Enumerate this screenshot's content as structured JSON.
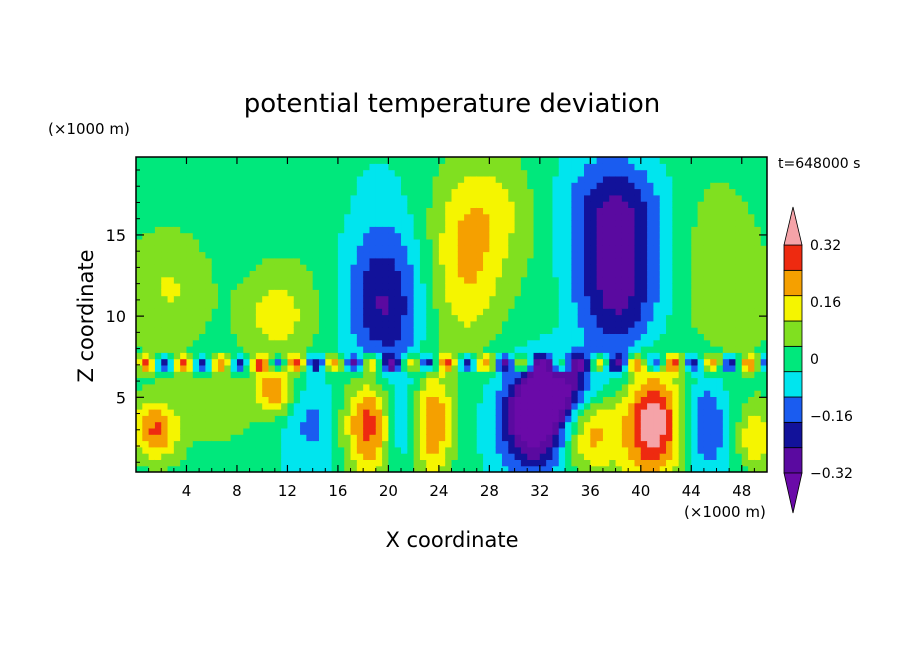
{
  "chart_data": {
    "type": "heatmap",
    "title": "potential temperature deviation",
    "time_label": "t=648000 s",
    "xlabel": "X coordinate",
    "ylabel": "Z coordinate",
    "x_unit": "(×1000 m)",
    "y_unit": "(×1000 m)",
    "xlim": [
      0,
      50
    ],
    "ylim": [
      0.4,
      19.8
    ],
    "x_ticks": [
      4,
      8,
      12,
      16,
      20,
      24,
      28,
      32,
      36,
      40,
      44,
      48
    ],
    "y_ticks": [
      5,
      10,
      15
    ],
    "colorbar": {
      "levels": [
        -0.4,
        -0.32,
        -0.24,
        -0.16,
        -0.08,
        0,
        0.08,
        0.16,
        0.24,
        0.32,
        0.4
      ],
      "tick_labels": [
        "0.32",
        "0.16",
        "0",
        "−0.16",
        "−0.32"
      ],
      "tick_values": [
        0.32,
        0.16,
        0,
        -0.16,
        -0.32
      ],
      "colors": [
        "#6a0aa8",
        "#5a0aa0",
        "#12129a",
        "#1a5cf0",
        "#00e5ee",
        "#00e87c",
        "#80e020",
        "#f5f500",
        "#f5a000",
        "#ee2a10",
        "#f5a3a8"
      ],
      "extend": "both"
    },
    "blobs": [
      {
        "x": 11,
        "z": 10,
        "rx": 3.2,
        "rz": 3,
        "v": 0.17
      },
      {
        "x": 3,
        "z": 12,
        "rx": 3.5,
        "rz": 4,
        "v": 0.14
      },
      {
        "x": 26,
        "z": 12,
        "rx": 3,
        "rz": 4.5,
        "v": 0.2
      },
      {
        "x": 27.5,
        "z": 16.5,
        "rx": 4,
        "rz": 3.5,
        "v": 0.14
      },
      {
        "x": 19.5,
        "z": 10.5,
        "rx": 3,
        "rz": 5,
        "v": -0.28
      },
      {
        "x": 38,
        "z": 12,
        "rx": 3.5,
        "rz": 5,
        "v": -0.3
      },
      {
        "x": 38,
        "z": 17,
        "rx": 4,
        "rz": 3,
        "v": -0.16
      },
      {
        "x": 46,
        "z": 12,
        "rx": 4,
        "rz": 6,
        "v": 0.1
      },
      {
        "x": 18.5,
        "z": 3.5,
        "rx": 2.0,
        "rz": 3.2,
        "v": 0.34
      },
      {
        "x": 23.5,
        "z": 3.5,
        "rx": 1.6,
        "rz": 3.2,
        "v": 0.3
      },
      {
        "x": 41,
        "z": 3.5,
        "rx": 2.5,
        "rz": 3.5,
        "v": 0.45
      },
      {
        "x": 36,
        "z": 3.5,
        "rx": 2,
        "rz": 3,
        "v": 0.26
      },
      {
        "x": 31.5,
        "z": 3.5,
        "rx": 2.5,
        "rz": 3,
        "v": -0.44
      },
      {
        "x": 34,
        "z": 5.5,
        "rx": 3,
        "rz": 2,
        "v": -0.36
      },
      {
        "x": 45,
        "z": 3.5,
        "rx": 2,
        "rz": 3,
        "v": -0.2
      },
      {
        "x": 14,
        "z": 3.5,
        "rx": 2,
        "rz": 3,
        "v": -0.12
      },
      {
        "x": 1.5,
        "z": 3,
        "rx": 1.8,
        "rz": 1.8,
        "v": 0.28
      },
      {
        "x": 7,
        "z": 4.5,
        "rx": 3,
        "rz": 2.2,
        "v": 0.12
      },
      {
        "x": 21,
        "z": 3,
        "rx": 1.5,
        "rz": 2.5,
        "v": -0.16
      },
      {
        "x": 11,
        "z": 5.5,
        "rx": 1.5,
        "rz": 1.5,
        "v": 0.28
      },
      {
        "x": 49,
        "z": 2.5,
        "rx": 1.5,
        "rz": 2,
        "v": 0.2
      }
    ]
  }
}
